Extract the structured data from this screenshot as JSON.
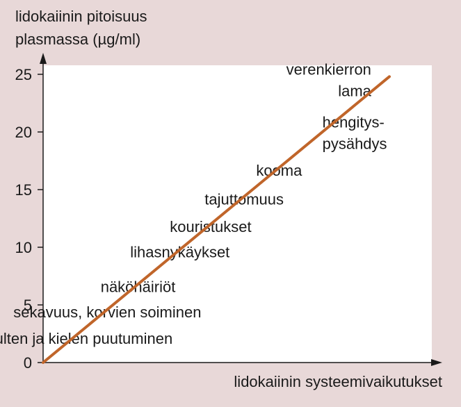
{
  "chart_data": {
    "type": "line",
    "ylabel_lines": [
      "lidokaiinin pitoisuus",
      "plasmassa (µg/ml)"
    ],
    "xlabel": "lidokaiinin systeemivaikutukset",
    "ylim": [
      0,
      25
    ],
    "yticks": [
      "0",
      "5",
      "10",
      "15",
      "20",
      "25"
    ],
    "x": [
      0,
      1
    ],
    "series": [
      {
        "values": [
          0,
          24.8
        ]
      }
    ],
    "annotations": [
      {
        "lines": [
          "huulten ja kielen puutuminen"
        ],
        "y": 2.1
      },
      {
        "lines": [
          "sekavuus, korvien soiminen"
        ],
        "y": 4.4
      },
      {
        "lines": [
          "näköhäiriöt"
        ],
        "y": 6.6
      },
      {
        "lines": [
          "lihasnykäykset"
        ],
        "y": 9.6
      },
      {
        "lines": [
          "kouristukset"
        ],
        "y": 11.8
      },
      {
        "lines": [
          "tajuttomuus"
        ],
        "y": 14.2
      },
      {
        "lines": [
          "kooma"
        ],
        "y": 16.7
      },
      {
        "lines": [
          "hengitys-",
          "pysähdys"
        ],
        "y": 19.9
      },
      {
        "lines": [
          "verenkierron",
          "lama"
        ],
        "y": 23.9
      }
    ],
    "colors": {
      "line": "#c0652a",
      "plot_bg": "#ffffff",
      "figure_bg": "#e8d8d8"
    },
    "grid": false
  }
}
